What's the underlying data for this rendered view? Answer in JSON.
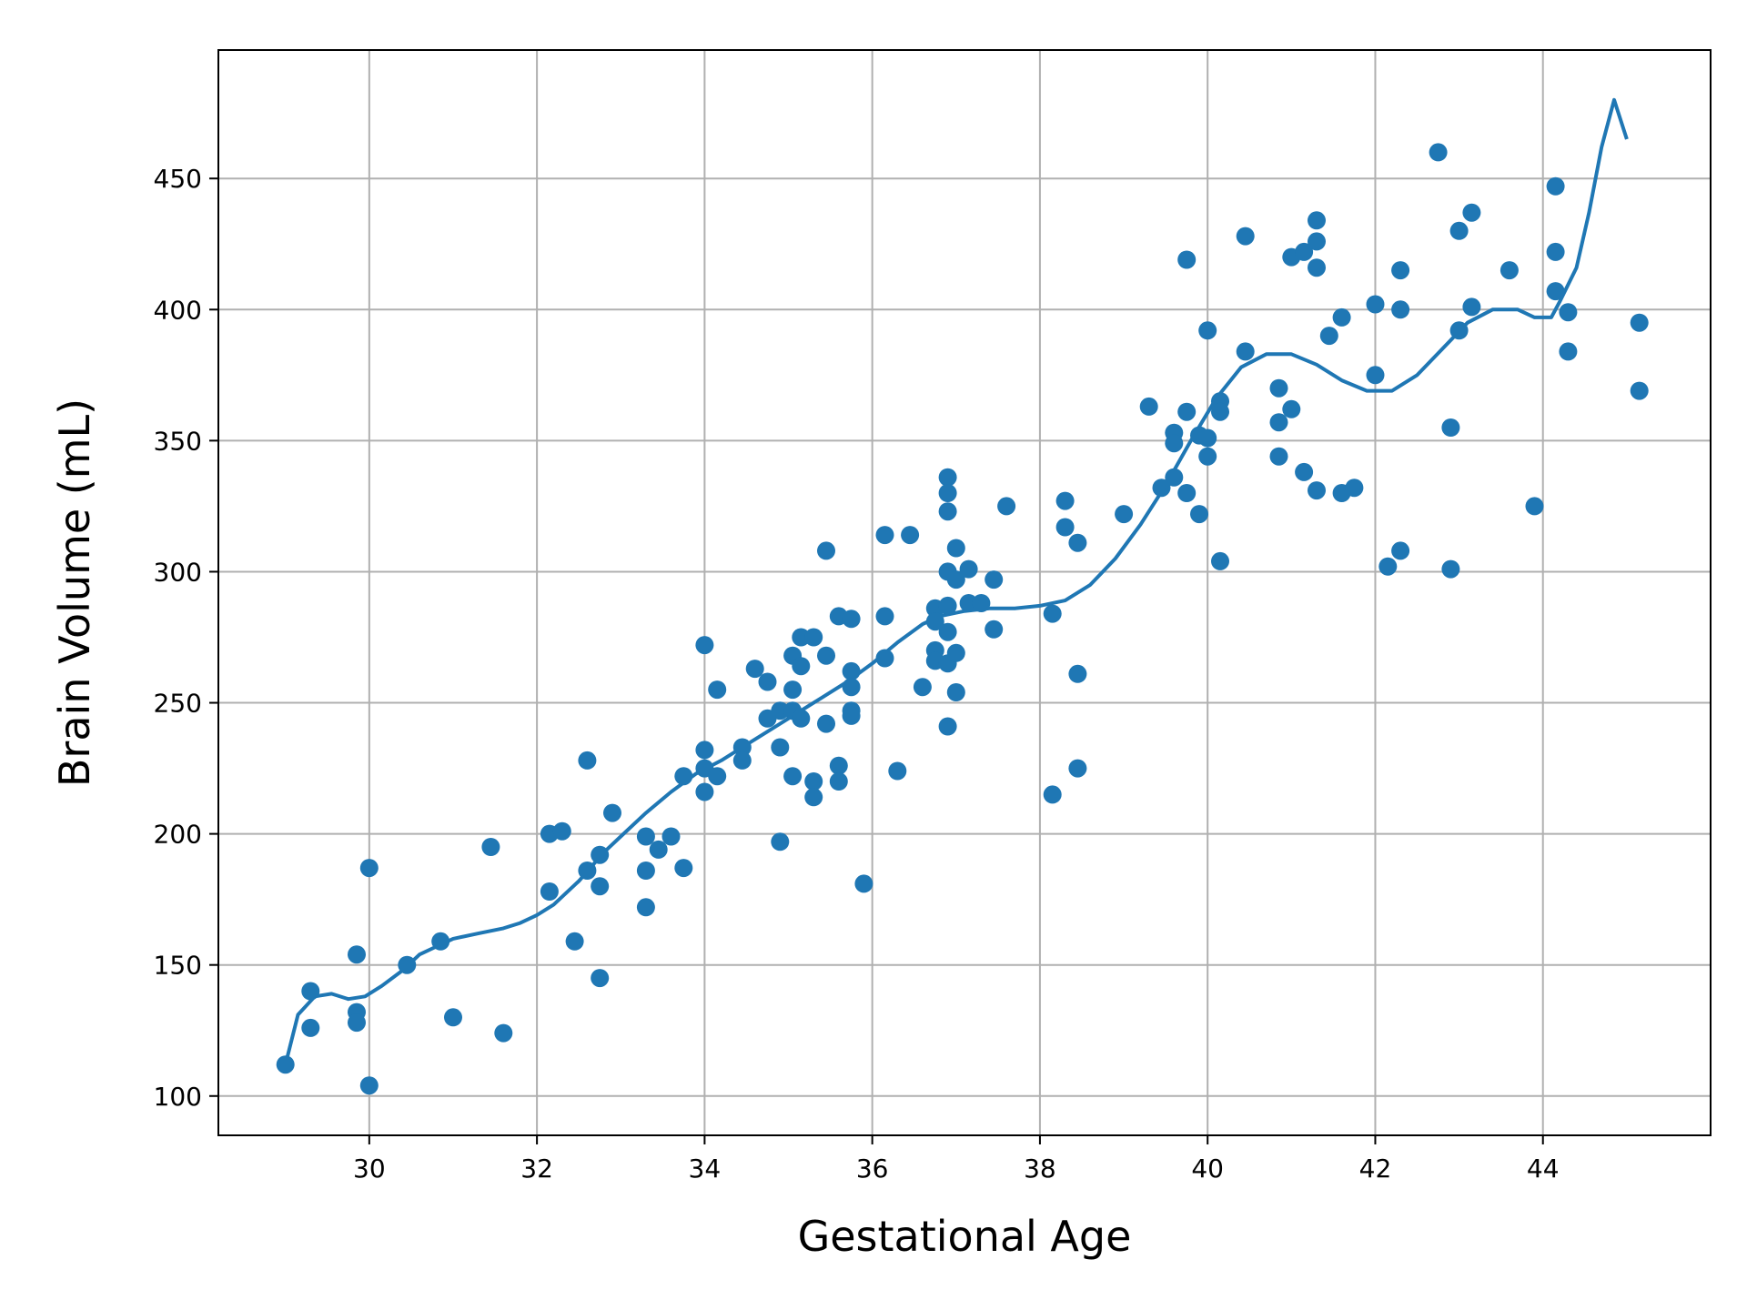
{
  "chart_data": {
    "type": "scatter",
    "title": "",
    "xlabel": "Gestational Age",
    "ylabel": "Brain Volume (mL)",
    "xlim": [
      28.2,
      46.0
    ],
    "ylim": [
      85,
      499
    ],
    "xticks": [
      30,
      32,
      34,
      36,
      38,
      40,
      42,
      44
    ],
    "yticks": [
      100,
      150,
      200,
      250,
      300,
      350,
      400,
      450
    ],
    "grid": true,
    "legend": "none",
    "color": "#1f77b4",
    "series": [
      {
        "type": "scatter",
        "points": [
          [
            29.0,
            112
          ],
          [
            29.3,
            140
          ],
          [
            29.3,
            126
          ],
          [
            29.85,
            154
          ],
          [
            29.85,
            132
          ],
          [
            29.85,
            128
          ],
          [
            30.0,
            187
          ],
          [
            30.0,
            104
          ],
          [
            30.45,
            150
          ],
          [
            30.85,
            159
          ],
          [
            31.0,
            130
          ],
          [
            31.45,
            195
          ],
          [
            31.6,
            124
          ],
          [
            32.15,
            200
          ],
          [
            32.15,
            178
          ],
          [
            32.3,
            201
          ],
          [
            32.45,
            159
          ],
          [
            32.6,
            228
          ],
          [
            32.6,
            186
          ],
          [
            32.75,
            192
          ],
          [
            32.75,
            180
          ],
          [
            32.75,
            145
          ],
          [
            32.9,
            208
          ],
          [
            33.3,
            199
          ],
          [
            33.3,
            186
          ],
          [
            33.3,
            172
          ],
          [
            33.45,
            194
          ],
          [
            33.6,
            199
          ],
          [
            33.75,
            222
          ],
          [
            33.75,
            187
          ],
          [
            34.0,
            272
          ],
          [
            34.0,
            232
          ],
          [
            34.0,
            225
          ],
          [
            34.0,
            216
          ],
          [
            34.15,
            255
          ],
          [
            34.15,
            222
          ],
          [
            34.45,
            233
          ],
          [
            34.45,
            228
          ],
          [
            34.6,
            263
          ],
          [
            34.75,
            258
          ],
          [
            34.75,
            244
          ],
          [
            34.9,
            247
          ],
          [
            34.9,
            233
          ],
          [
            34.9,
            197
          ],
          [
            35.05,
            268
          ],
          [
            35.05,
            255
          ],
          [
            35.05,
            247
          ],
          [
            35.05,
            222
          ],
          [
            35.15,
            275
          ],
          [
            35.15,
            264
          ],
          [
            35.15,
            244
          ],
          [
            35.3,
            275
          ],
          [
            35.3,
            220
          ],
          [
            35.3,
            214
          ],
          [
            35.45,
            308
          ],
          [
            35.45,
            268
          ],
          [
            35.45,
            242
          ],
          [
            35.6,
            283
          ],
          [
            35.6,
            226
          ],
          [
            35.6,
            220
          ],
          [
            35.75,
            282
          ],
          [
            35.75,
            262
          ],
          [
            35.75,
            256
          ],
          [
            35.75,
            247
          ],
          [
            35.75,
            245
          ],
          [
            35.9,
            181
          ],
          [
            36.15,
            314
          ],
          [
            36.15,
            283
          ],
          [
            36.15,
            267
          ],
          [
            36.3,
            224
          ],
          [
            36.45,
            314
          ],
          [
            36.6,
            256
          ],
          [
            36.75,
            286
          ],
          [
            36.75,
            281
          ],
          [
            36.75,
            270
          ],
          [
            36.75,
            266
          ],
          [
            36.9,
            336
          ],
          [
            36.9,
            330
          ],
          [
            36.9,
            323
          ],
          [
            36.9,
            300
          ],
          [
            36.9,
            287
          ],
          [
            36.9,
            277
          ],
          [
            36.9,
            265
          ],
          [
            36.9,
            241
          ],
          [
            37.0,
            309
          ],
          [
            37.0,
            297
          ],
          [
            37.0,
            269
          ],
          [
            37.0,
            254
          ],
          [
            37.15,
            301
          ],
          [
            37.15,
            288
          ],
          [
            37.3,
            288
          ],
          [
            37.45,
            297
          ],
          [
            37.45,
            278
          ],
          [
            37.6,
            325
          ],
          [
            38.15,
            284
          ],
          [
            38.15,
            215
          ],
          [
            38.3,
            327
          ],
          [
            38.3,
            317
          ],
          [
            38.45,
            311
          ],
          [
            38.45,
            261
          ],
          [
            38.45,
            225
          ],
          [
            39.0,
            322
          ],
          [
            39.3,
            363
          ],
          [
            39.45,
            332
          ],
          [
            39.6,
            353
          ],
          [
            39.6,
            349
          ],
          [
            39.6,
            336
          ],
          [
            39.75,
            419
          ],
          [
            39.75,
            361
          ],
          [
            39.75,
            330
          ],
          [
            39.9,
            352
          ],
          [
            39.9,
            322
          ],
          [
            40.0,
            392
          ],
          [
            40.0,
            351
          ],
          [
            40.0,
            344
          ],
          [
            40.15,
            365
          ],
          [
            40.15,
            361
          ],
          [
            40.15,
            304
          ],
          [
            40.45,
            428
          ],
          [
            40.45,
            384
          ],
          [
            40.85,
            370
          ],
          [
            40.85,
            357
          ],
          [
            40.85,
            344
          ],
          [
            41.0,
            420
          ],
          [
            41.0,
            362
          ],
          [
            41.15,
            422
          ],
          [
            41.15,
            338
          ],
          [
            41.3,
            434
          ],
          [
            41.3,
            426
          ],
          [
            41.3,
            416
          ],
          [
            41.3,
            331
          ],
          [
            41.45,
            390
          ],
          [
            41.6,
            397
          ],
          [
            41.6,
            330
          ],
          [
            41.75,
            332
          ],
          [
            42.0,
            402
          ],
          [
            42.0,
            375
          ],
          [
            42.15,
            302
          ],
          [
            42.3,
            415
          ],
          [
            42.3,
            400
          ],
          [
            42.3,
            308
          ],
          [
            42.75,
            460
          ],
          [
            42.9,
            355
          ],
          [
            42.9,
            301
          ],
          [
            43.0,
            430
          ],
          [
            43.0,
            392
          ],
          [
            43.15,
            437
          ],
          [
            43.15,
            401
          ],
          [
            43.6,
            415
          ],
          [
            43.9,
            325
          ],
          [
            44.15,
            447
          ],
          [
            44.15,
            422
          ],
          [
            44.15,
            407
          ],
          [
            44.3,
            399
          ],
          [
            44.3,
            384
          ],
          [
            45.15,
            395
          ],
          [
            45.15,
            369
          ]
        ]
      },
      {
        "type": "line",
        "points": [
          [
            29.0,
            112
          ],
          [
            29.15,
            131
          ],
          [
            29.35,
            138
          ],
          [
            29.55,
            139
          ],
          [
            29.75,
            137
          ],
          [
            29.95,
            138
          ],
          [
            30.15,
            142
          ],
          [
            30.4,
            148
          ],
          [
            30.6,
            154
          ],
          [
            30.8,
            157
          ],
          [
            31.0,
            160
          ],
          [
            31.3,
            162
          ],
          [
            31.6,
            164
          ],
          [
            31.8,
            166
          ],
          [
            32.0,
            169
          ],
          [
            32.2,
            173
          ],
          [
            32.5,
            182
          ],
          [
            32.8,
            193
          ],
          [
            33.0,
            199
          ],
          [
            33.3,
            208
          ],
          [
            33.6,
            216
          ],
          [
            33.9,
            223
          ],
          [
            34.2,
            228
          ],
          [
            34.5,
            234
          ],
          [
            34.8,
            240
          ],
          [
            35.1,
            246
          ],
          [
            35.4,
            252
          ],
          [
            35.7,
            258
          ],
          [
            36.0,
            265
          ],
          [
            36.3,
            273
          ],
          [
            36.6,
            280
          ],
          [
            36.8,
            283
          ],
          [
            37.1,
            285
          ],
          [
            37.4,
            286
          ],
          [
            37.7,
            286
          ],
          [
            38.0,
            287
          ],
          [
            38.3,
            289
          ],
          [
            38.6,
            295
          ],
          [
            38.9,
            305
          ],
          [
            39.2,
            318
          ],
          [
            39.5,
            333
          ],
          [
            39.8,
            350
          ],
          [
            40.1,
            366
          ],
          [
            40.4,
            378
          ],
          [
            40.7,
            383
          ],
          [
            41.0,
            383
          ],
          [
            41.3,
            379
          ],
          [
            41.6,
            373
          ],
          [
            41.9,
            369
          ],
          [
            42.2,
            369
          ],
          [
            42.5,
            375
          ],
          [
            42.8,
            385
          ],
          [
            43.1,
            395
          ],
          [
            43.4,
            400
          ],
          [
            43.7,
            400
          ],
          [
            43.9,
            397
          ],
          [
            44.1,
            397
          ],
          [
            44.2,
            403
          ],
          [
            44.4,
            416
          ],
          [
            44.55,
            437
          ],
          [
            44.7,
            462
          ],
          [
            44.85,
            480
          ],
          [
            45.0,
            465
          ]
        ]
      }
    ]
  }
}
